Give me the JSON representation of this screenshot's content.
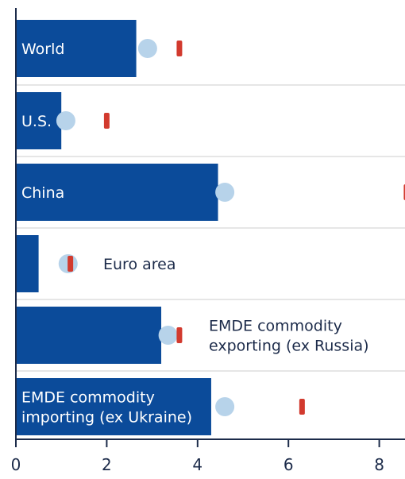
{
  "chart_data": {
    "type": "bar",
    "orientation": "horizontal",
    "categories": [
      "World",
      "U.S.",
      "China",
      "Euro area",
      "EMDE commodity exporting (ex Russia)",
      "EMDE commodity importing (ex Ukraine)"
    ],
    "category_label_lines": [
      [
        "World"
      ],
      [
        "U.S."
      ],
      [
        "China"
      ],
      [
        "Euro area"
      ],
      [
        "EMDE commodity",
        "exporting (ex Russia)"
      ],
      [
        "EMDE commodity",
        "importing (ex Ukraine)"
      ]
    ],
    "label_inside_bar": [
      true,
      true,
      true,
      false,
      false,
      true
    ],
    "series": [
      {
        "values": [
          2.65,
          1.0,
          4.45,
          0.5,
          3.2,
          4.3
        ]
      },
      {
        "values": [
          2.9,
          1.1,
          4.6,
          1.15,
          3.35,
          4.6
        ]
      },
      {
        "values": [
          3.6,
          2.0,
          8.6,
          1.2,
          3.6,
          6.3
        ]
      }
    ],
    "series_markers": [
      "bar",
      "circle",
      "dash"
    ],
    "colors": {
      "bar": "#0b4b9a",
      "circle": "#b7d3ea",
      "dash": "#d23a2e",
      "axis": "#1c2b4a",
      "grid": "#e6e6e6",
      "background": "#ffffff"
    },
    "xlim": [
      0,
      8.6
    ],
    "xticks": [
      "0",
      "2",
      "4",
      "6",
      "8"
    ],
    "xtick_values": [
      0,
      2,
      4,
      6,
      8
    ],
    "grid": true,
    "title": "",
    "xlabel": "",
    "ylabel": ""
  }
}
